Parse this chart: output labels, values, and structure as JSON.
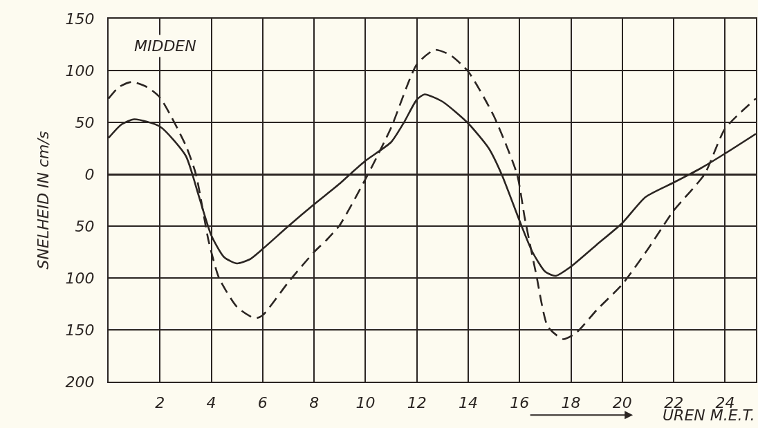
{
  "chart_data": {
    "type": "line",
    "xlabel": "UREN M.E.T.",
    "ylabel": "SNELHEID IN cm/s",
    "annotations": [
      "MIDDEN"
    ],
    "xlim": [
      0,
      25.2
    ],
    "xticks": [
      2,
      4,
      6,
      8,
      10,
      12,
      14,
      16,
      18,
      20,
      22,
      24
    ],
    "ylim": [
      -200,
      150
    ],
    "yticks": [
      {
        "value": -200,
        "label": "200"
      },
      {
        "value": -150,
        "label": "150"
      },
      {
        "value": -100,
        "label": "100"
      },
      {
        "value": -50,
        "label": "50"
      },
      0,
      50,
      100,
      150
    ],
    "grid": true,
    "marker": "none",
    "series": [
      {
        "color": "#2b2522",
        "line_style": "solid",
        "x": [
          0,
          0.5,
          1,
          2,
          3,
          3.5,
          4,
          4.5,
          5,
          5.5,
          6,
          7,
          8,
          9,
          9.4,
          10,
          11,
          11.5,
          12,
          12.3,
          13,
          14,
          14.8,
          15.3,
          16,
          16.5,
          17,
          17.4,
          18,
          19,
          20,
          20.9,
          22,
          23,
          24,
          25.2
        ],
        "values": [
          35,
          48,
          53,
          46,
          18,
          -20,
          -59,
          -80,
          -86,
          -82,
          -72,
          -50,
          -29,
          -9,
          0,
          13,
          31,
          50,
          72,
          77,
          70,
          49,
          25,
          0,
          -45,
          -75,
          -94,
          -98,
          -89,
          -68,
          -47,
          -22,
          -8,
          5,
          20,
          39
        ]
      },
      {
        "color": "#2b2522",
        "line_style": "dashed",
        "x": [
          0,
          0.4,
          0.9,
          1.5,
          2,
          3,
          3.4,
          3.9,
          4.3,
          5,
          5.7,
          6,
          7,
          8,
          8.5,
          9,
          10.1,
          11,
          12,
          12.7,
          13.3,
          14,
          15,
          15.9,
          16.2,
          16.65,
          17.1,
          17.7,
          18.2,
          19,
          20,
          21,
          22,
          23.2,
          24,
          25.2
        ],
        "values": [
          73,
          84,
          89,
          84,
          74,
          28,
          0,
          -65,
          -100,
          -128,
          -139,
          -136,
          -104,
          -75,
          -63,
          -49,
          0,
          45,
          106,
          120,
          115,
          99,
          56,
          0,
          -42,
          -97,
          -147,
          -159,
          -153,
          -131,
          -106,
          -72,
          -35,
          0,
          44,
          73
        ]
      }
    ]
  }
}
